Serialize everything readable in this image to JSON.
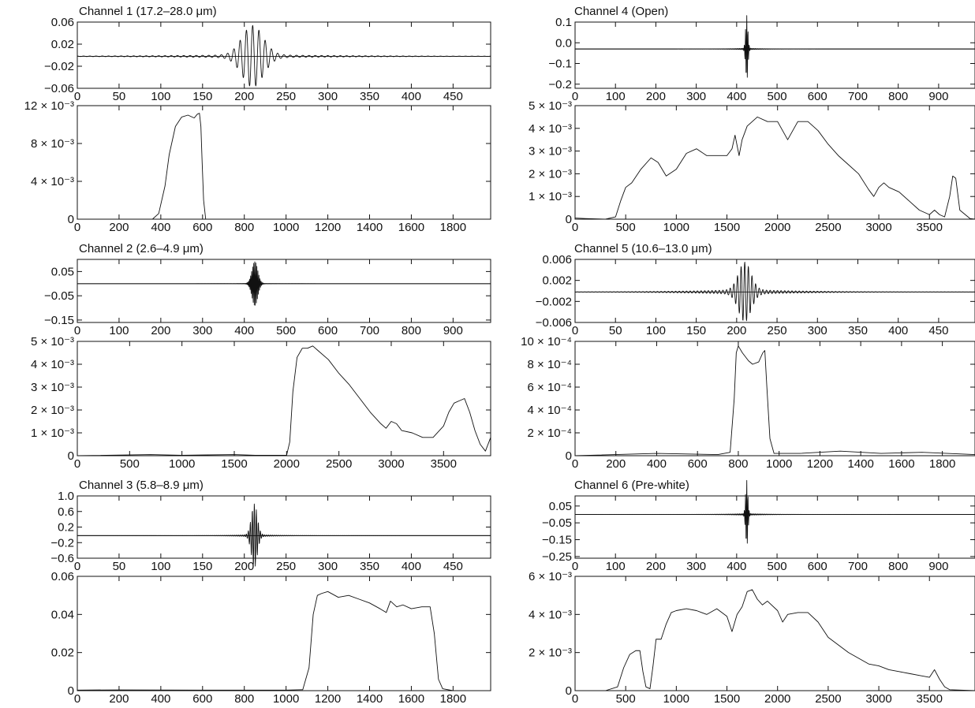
{
  "chart_data": [
    {
      "type": "line",
      "title": "Channel 1 (17.2–28.0 μm)",
      "plots": [
        {
          "kind": "interferogram",
          "x_ticks": [
            0,
            50,
            100,
            150,
            200,
            250,
            300,
            350,
            400,
            450
          ],
          "xlim": [
            0,
            495
          ],
          "y_ticks": [
            {
              "v": 0.06,
              "label": "0.06"
            },
            {
              "v": 0.02,
              "label": "0.02"
            },
            {
              "v": -0.02,
              "label": "−0.02"
            },
            {
              "v": -0.06,
              "label": "−0.06"
            }
          ],
          "ylim": [
            -0.06,
            0.06
          ],
          "baseline": -0.002,
          "center": 210,
          "amplitude": 0.053,
          "period": 7.5,
          "decay": 18,
          "tail": 0.003,
          "tail_decay": 110
        },
        {
          "kind": "spectrum",
          "x_ticks": [
            0,
            200,
            400,
            600,
            800,
            1000,
            1200,
            1400,
            1600,
            1800
          ],
          "xlim": [
            0,
            1980
          ],
          "y_ticks": [
            {
              "v": 0,
              "label": "0"
            },
            {
              "v": 0.004,
              "label": "4 × 10⁻³"
            },
            {
              "v": 0.008,
              "label": "8 × 10⁻³"
            },
            {
              "v": 0.012,
              "label": "12 × 10⁻³"
            }
          ],
          "ylim": [
            0,
            0.012
          ],
          "x": [
            0,
            360,
            390,
            420,
            440,
            470,
            500,
            530,
            560,
            575,
            585,
            592,
            598,
            605,
            615,
            1980
          ],
          "y": [
            0,
            0,
            0.0006,
            0.0035,
            0.0068,
            0.0098,
            0.0108,
            0.011,
            0.0107,
            0.0111,
            0.0112,
            0.0098,
            0.006,
            0.002,
            0,
            0
          ]
        }
      ]
    },
    {
      "type": "line",
      "title": "Channel 4 (Open)",
      "plots": [
        {
          "kind": "interferogram",
          "x_ticks": [
            0,
            100,
            200,
            300,
            400,
            500,
            600,
            700,
            800,
            900
          ],
          "xlim": [
            0,
            990
          ],
          "y_ticks": [
            {
              "v": 0.1,
              "label": "0.1"
            },
            {
              "v": 0.0,
              "label": "0.0"
            },
            {
              "v": -0.1,
              "label": "−0.1"
            },
            {
              "v": -0.2,
              "label": "−0.2"
            }
          ],
          "ylim": [
            -0.22,
            0.1
          ],
          "baseline": -0.03,
          "center": 425,
          "amplitude": 0.16,
          "period": 3,
          "decay": 4,
          "tail": 0.004,
          "tail_decay": 40
        },
        {
          "kind": "spectrum",
          "x_ticks": [
            0,
            500,
            1000,
            1500,
            2000,
            2500,
            3000,
            3500
          ],
          "xlim": [
            0,
            3950
          ],
          "y_ticks": [
            {
              "v": 0,
              "label": "0"
            },
            {
              "v": 0.001,
              "label": "1 × 10⁻³"
            },
            {
              "v": 0.002,
              "label": "2 × 10⁻³"
            },
            {
              "v": 0.003,
              "label": "3 × 10⁻³"
            },
            {
              "v": 0.004,
              "label": "4 × 10⁻³"
            },
            {
              "v": 0.005,
              "label": "5 × 10⁻³"
            }
          ],
          "ylim": [
            0,
            0.005
          ],
          "x": [
            0,
            100,
            300,
            400,
            450,
            500,
            560,
            650,
            750,
            820,
            900,
            1000,
            1100,
            1200,
            1300,
            1400,
            1500,
            1550,
            1580,
            1620,
            1650,
            1700,
            1800,
            1900,
            2000,
            2050,
            2100,
            2200,
            2300,
            2400,
            2500,
            2600,
            2700,
            2800,
            2900,
            2950,
            3000,
            3050,
            3100,
            3200,
            3300,
            3400,
            3500,
            3550,
            3600,
            3650,
            3700,
            3730,
            3760,
            3800,
            3900,
            3950
          ],
          "y": [
            5e-05,
            3e-05,
            0,
            0.0001,
            0.0008,
            0.0014,
            0.0016,
            0.0022,
            0.0027,
            0.0025,
            0.0019,
            0.0022,
            0.0029,
            0.0031,
            0.0028,
            0.0028,
            0.0028,
            0.0031,
            0.0037,
            0.0028,
            0.0035,
            0.0041,
            0.0045,
            0.0043,
            0.0043,
            0.0039,
            0.0035,
            0.0043,
            0.0043,
            0.0039,
            0.0033,
            0.0028,
            0.0024,
            0.002,
            0.0013,
            0.001,
            0.0014,
            0.0016,
            0.0014,
            0.0012,
            0.0008,
            0.0004,
            0.0002,
            0.0004,
            0.0002,
            0.0001,
            0.001,
            0.0019,
            0.0018,
            0.0004,
            3e-05,
            0
          ]
        }
      ]
    },
    {
      "type": "line",
      "title": "Channel 2 (2.6–4.9 μm)",
      "plots": [
        {
          "kind": "interferogram",
          "x_ticks": [
            0,
            100,
            200,
            300,
            400,
            500,
            600,
            700,
            800,
            900
          ],
          "xlim": [
            0,
            990
          ],
          "y_ticks": [
            {
              "v": 0.05,
              "label": "0.05"
            },
            {
              "v": -0.05,
              "label": "−0.05"
            },
            {
              "v": -0.15,
              "label": "−0.15"
            }
          ],
          "ylim": [
            -0.16,
            0.1
          ],
          "baseline": 0.0,
          "center": 425,
          "amplitude": 0.09,
          "period": 2.5,
          "decay": 10,
          "tail": 0.002,
          "tail_decay": 30
        },
        {
          "kind": "spectrum",
          "x_ticks": [
            0,
            500,
            1000,
            1500,
            2000,
            2500,
            3000,
            3500
          ],
          "xlim": [
            0,
            3950
          ],
          "y_ticks": [
            {
              "v": 0,
              "label": "0"
            },
            {
              "v": 0.001,
              "label": "1 × 10⁻³"
            },
            {
              "v": 0.002,
              "label": "2 × 10⁻³"
            },
            {
              "v": 0.003,
              "label": "3 × 10⁻³"
            },
            {
              "v": 0.004,
              "label": "4 × 10⁻³"
            },
            {
              "v": 0.005,
              "label": "5 × 10⁻³"
            }
          ],
          "ylim": [
            0,
            0.005
          ],
          "x": [
            0,
            700,
            1000,
            1500,
            1700,
            2000,
            2030,
            2060,
            2100,
            2150,
            2200,
            2250,
            2300,
            2400,
            2500,
            2600,
            2700,
            2800,
            2900,
            2950,
            3000,
            3050,
            3100,
            3200,
            3300,
            3400,
            3500,
            3550,
            3600,
            3650,
            3700,
            3750,
            3800,
            3850,
            3900,
            3950
          ],
          "y": [
            0,
            5e-05,
            2e-05,
            5e-05,
            2e-05,
            2e-05,
            0.0006,
            0.0028,
            0.0043,
            0.0047,
            0.0047,
            0.0048,
            0.0046,
            0.0042,
            0.0036,
            0.0031,
            0.0025,
            0.0019,
            0.0014,
            0.0012,
            0.0015,
            0.0014,
            0.0011,
            0.001,
            0.0008,
            0.0008,
            0.0013,
            0.0019,
            0.0023,
            0.0024,
            0.0025,
            0.0019,
            0.0011,
            0.0005,
            0.0002,
            0.0008
          ]
        }
      ]
    },
    {
      "type": "line",
      "title": "Channel 5 (10.6–13.0 μm)",
      "plots": [
        {
          "kind": "interferogram",
          "x_ticks": [
            0,
            50,
            100,
            150,
            200,
            250,
            300,
            350,
            400,
            450
          ],
          "xlim": [
            0,
            495
          ],
          "y_ticks": [
            {
              "v": 0.006,
              "label": "0.006"
            },
            {
              "v": 0.002,
              "label": "0.002"
            },
            {
              "v": -0.002,
              "label": "−0.002"
            },
            {
              "v": -0.006,
              "label": "−0.006"
            }
          ],
          "ylim": [
            -0.006,
            0.006
          ],
          "baseline": -0.0002,
          "center": 210,
          "amplitude": 0.0052,
          "period": 4.5,
          "decay": 11,
          "tail": 0.0005,
          "tail_decay": 70
        },
        {
          "kind": "spectrum",
          "x_ticks": [
            0,
            200,
            400,
            600,
            800,
            1000,
            1200,
            1400,
            1600,
            1800
          ],
          "xlim": [
            0,
            1960
          ],
          "y_ticks": [
            {
              "v": 0,
              "label": "0"
            },
            {
              "v": 0.0002,
              "label": "2 × 10⁻⁴"
            },
            {
              "v": 0.0004,
              "label": "4 × 10⁻⁴"
            },
            {
              "v": 0.0006,
              "label": "6 × 10⁻⁴"
            },
            {
              "v": 0.0008,
              "label": "8 × 10⁻⁴"
            },
            {
              "v": 0.001,
              "label": "10 × 10⁻⁴"
            }
          ],
          "ylim": [
            0,
            0.001
          ],
          "x": [
            0,
            400,
            700,
            760,
            780,
            790,
            800,
            820,
            850,
            870,
            900,
            920,
            930,
            940,
            955,
            975,
            1100,
            1300,
            1500,
            1700,
            1960
          ],
          "y": [
            0,
            2e-05,
            1e-05,
            3e-05,
            0.0005,
            0.0009,
            0.00096,
            0.0009,
            0.00083,
            0.0008,
            0.00082,
            0.0009,
            0.00092,
            0.0006,
            0.00015,
            2e-05,
            2e-05,
            4e-05,
            2e-05,
            3e-05,
            1e-05
          ]
        }
      ]
    },
    {
      "type": "line",
      "title": "Channel 3 (5.8–8.9 μm)",
      "plots": [
        {
          "kind": "interferogram",
          "x_ticks": [
            0,
            50,
            100,
            150,
            200,
            250,
            300,
            350,
            400,
            450
          ],
          "xlim": [
            0,
            495
          ],
          "y_ticks": [
            {
              "v": 1.0,
              "label": "1.0"
            },
            {
              "v": 0.6,
              "label": "0.6"
            },
            {
              "v": 0.2,
              "label": "0.2"
            },
            {
              "v": -0.2,
              "label": "−0.2"
            },
            {
              "v": -0.6,
              "label": "−0.6"
            }
          ],
          "ylim": [
            -0.6,
            1.0
          ],
          "baseline": -0.02,
          "center": 212,
          "amplitude": 0.8,
          "period": 2.4,
          "decay": 5,
          "tail": 0.03,
          "tail_decay": 28
        },
        {
          "kind": "spectrum",
          "x_ticks": [
            0,
            200,
            400,
            600,
            800,
            1000,
            1200,
            1400,
            1600,
            1800
          ],
          "xlim": [
            0,
            1980
          ],
          "y_ticks": [
            {
              "v": 0,
              "label": "0"
            },
            {
              "v": 0.02,
              "label": "0.02"
            },
            {
              "v": 0.04,
              "label": "0.04"
            },
            {
              "v": 0.06,
              "label": "0.06"
            }
          ],
          "ylim": [
            0,
            0.06
          ],
          "x": [
            0,
            200,
            600,
            1000,
            1080,
            1110,
            1130,
            1150,
            1170,
            1200,
            1250,
            1300,
            1350,
            1400,
            1450,
            1480,
            1500,
            1530,
            1560,
            1600,
            1650,
            1690,
            1710,
            1730,
            1750,
            1800,
            1980
          ],
          "y": [
            0.0003,
            0.0004,
            0.0003,
            0.0003,
            0.0005,
            0.012,
            0.04,
            0.05,
            0.051,
            0.052,
            0.049,
            0.05,
            0.048,
            0.046,
            0.043,
            0.041,
            0.047,
            0.044,
            0.045,
            0.043,
            0.044,
            0.044,
            0.03,
            0.006,
            0.001,
            0,
            0
          ]
        }
      ]
    },
    {
      "type": "line",
      "title": "Channel 6 (Pre-white)",
      "plots": [
        {
          "kind": "interferogram",
          "x_ticks": [
            0,
            100,
            200,
            300,
            400,
            500,
            600,
            700,
            800,
            900
          ],
          "xlim": [
            0,
            990
          ],
          "y_ticks": [
            {
              "v": 0.05,
              "label": "0.05"
            },
            {
              "v": -0.05,
              "label": "−0.05"
            },
            {
              "v": -0.15,
              "label": "−0.15"
            },
            {
              "v": -0.25,
              "label": "−0.25"
            }
          ],
          "ylim": [
            -0.26,
            0.11
          ],
          "baseline": 0.0,
          "center": 425,
          "amplitude": 0.2,
          "period": 3,
          "decay": 4,
          "tail": 0.005,
          "tail_decay": 60
        },
        {
          "kind": "spectrum",
          "x_ticks": [
            0,
            500,
            1000,
            1500,
            2000,
            2500,
            3000,
            3500
          ],
          "xlim": [
            0,
            3950
          ],
          "y_ticks": [
            {
              "v": 0,
              "label": "0"
            },
            {
              "v": 0.002,
              "label": "2 × 10⁻³"
            },
            {
              "v": 0.004,
              "label": "4 × 10⁻³"
            },
            {
              "v": 0.006,
              "label": "6 × 10⁻³"
            }
          ],
          "ylim": [
            0,
            0.006
          ],
          "x": [
            0,
            300,
            420,
            480,
            540,
            600,
            640,
            670,
            700,
            740,
            770,
            800,
            850,
            900,
            950,
            1000,
            1100,
            1200,
            1300,
            1400,
            1500,
            1550,
            1600,
            1650,
            1700,
            1750,
            1800,
            1850,
            1900,
            2000,
            2050,
            2100,
            2200,
            2300,
            2400,
            2500,
            2600,
            2700,
            2800,
            2900,
            3000,
            3100,
            3200,
            3300,
            3400,
            3500,
            3550,
            3600,
            3650,
            3700,
            3950
          ],
          "y": [
            0,
            0,
            0.0002,
            0.0012,
            0.0019,
            0.0021,
            0.0021,
            0.001,
            0.0002,
            0.0001,
            0.0013,
            0.0027,
            0.0027,
            0.0035,
            0.0041,
            0.0042,
            0.0043,
            0.0042,
            0.004,
            0.0043,
            0.0039,
            0.0031,
            0.004,
            0.0044,
            0.0052,
            0.0053,
            0.0048,
            0.0045,
            0.0047,
            0.0042,
            0.0036,
            0.004,
            0.0041,
            0.0041,
            0.0036,
            0.0028,
            0.0024,
            0.002,
            0.0017,
            0.0014,
            0.0013,
            0.0011,
            0.001,
            0.0009,
            0.0008,
            0.0007,
            0.0011,
            0.0006,
            0.0002,
            5e-05,
            0
          ]
        }
      ]
    }
  ]
}
